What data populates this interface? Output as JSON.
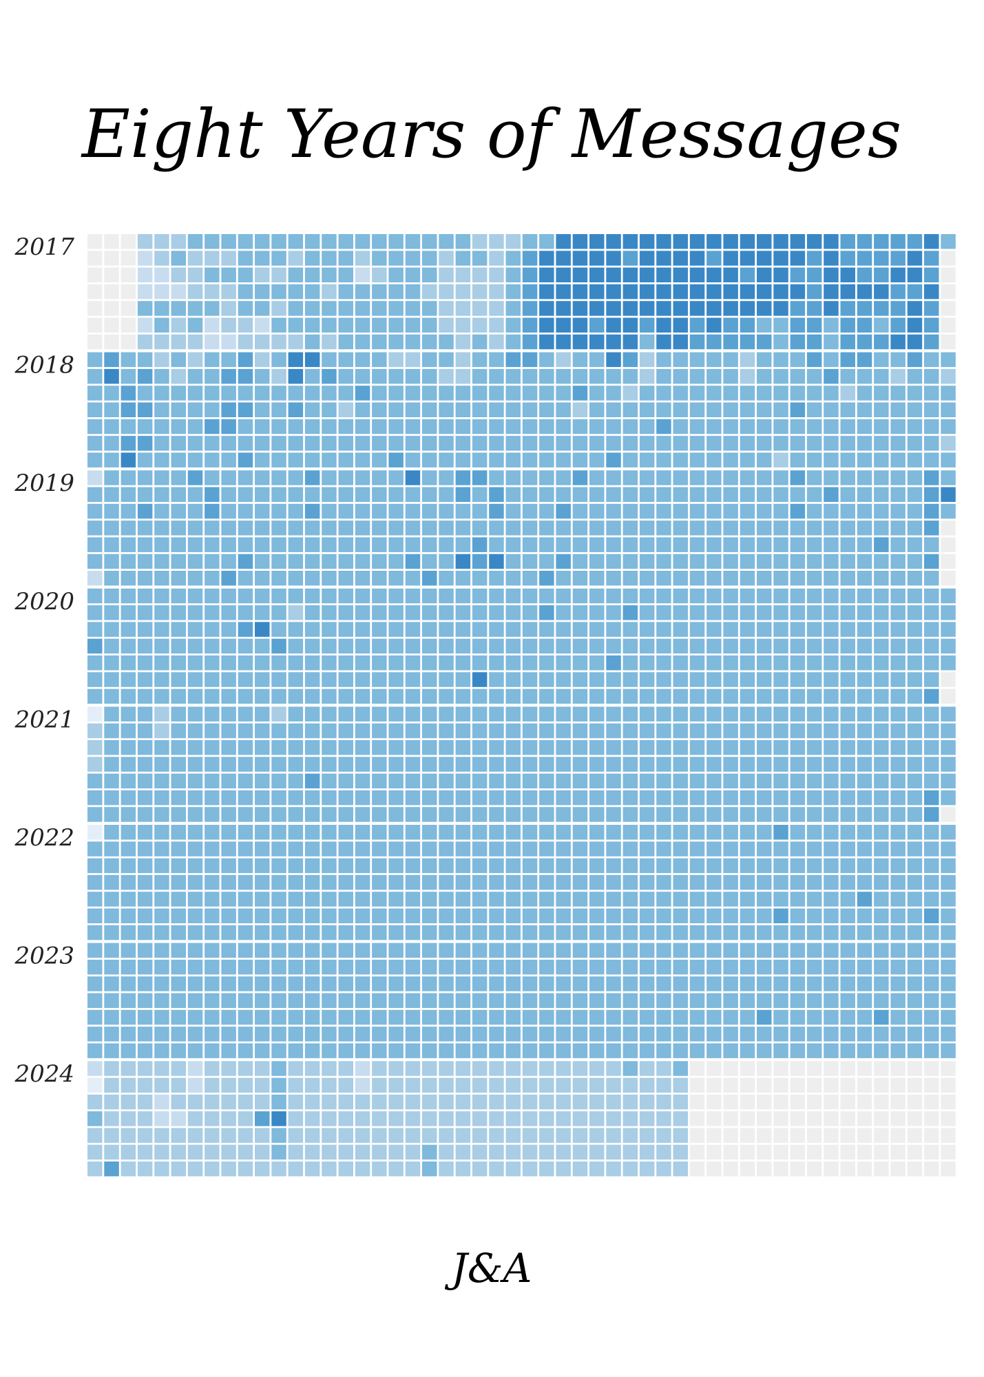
{
  "title": "Eight Years of Messages",
  "signature": "J&A",
  "chart_data": {
    "type": "heatmap",
    "title": "Eight Years of Messages",
    "description_scale": "0 = no data (grey), 1 = lightest blue ... 6 = darkest blue; 7 rows per year (days of week), 52 columns (weeks)",
    "palette": [
      "#eeeeee",
      "#e4eef9",
      "#c8dcef",
      "#a8cde5",
      "#7fb9dc",
      "#5aa2d2",
      "#3a87c6"
    ],
    "years": [
      {
        "label": "2017",
        "rows": [
          "0003334444444444444444433344666666666666666665555564",
          "0002343334443444344443443456666656666566666565555650",
          "0002233444334444234443333456666666666665665566556650",
          "0002223334444434444433333456666666666666666566665560",
          "0004444434434444444443333456666666666666665565555650",
          "0002434233244444444443333456665665665655445545545650",
          "0003333223333434444444343456666664665555545545556650"
        ]
      },
      {
        "label": "2018",
        "rows": [
          "4544343445346644443344344554344653444443444545544544",
          "4645434455436454444443344444444443444443444454443443",
          "4454444444444444544444444444454434444444444443444444",
          "4455444455445443444444444444434444444444445444444444",
          "4444444554444444444444444444444444544444444444444444",
          "4455444444444444444444444444444444444444444444444443",
          "4464444445444444445444444444444544444444434444444444"
        ]
      },
      {
        "label": "2019",
        "rows": [
          "2444445444444544444644554444454444444444445444444454",
          "4444444544444444444444545444444444444444444454444456",
          "4445444544444544444444445444544444444444445444444454",
          "4444444444444444444444444444444444444444444444444450",
          "4444444444444444444444454444444444444444444444454440",
          "4444444445444444444544656444544444444444444444444450",
          "2444444454444444444454444445444444444444444444444440"
        ]
      },
      {
        "label": "2020",
        "rows": [
          "4444444444444444444444444444444444444444444444444444",
          "4444444444443444444444444445444454444444444444444444",
          "4444444445644444444444444444444444444444444444444444",
          "5444444444454444444444444444444444444444444444444444",
          "4444444444444444444444444444444544444444444444444444",
          "4444444444444444444444464444444444444444444444444440",
          "4444444444444444444444444444444444444444444444444450"
        ]
      },
      {
        "label": "2021",
        "rows": [
          "1444344444434444444444444444444444444444444444444444",
          "3444344444444444444444444444444444444444444444444444",
          "3444444444444444444444444444444444444444444444444444",
          "3444444444444444444444444444444444444444444444444444",
          "4444444444444544444444444444444444444444444444444444",
          "4444444444444444444444444444444444444444444444444454",
          "4444444444444444444444444444444444444444444444444450"
        ]
      },
      {
        "label": "2022",
        "rows": [
          "1444444444444444444444444444444444444444454444444444",
          "4444444444444444444444444444444444444444444444444444",
          "4444444444444444444444444444444444444444444444444444",
          "4444444444444444444444444444444444444444444444444444",
          "4444444444444444444444444444444444444444444444544444",
          "4444444444444444444444444444444444444444454444444454",
          "4444444444444444444444444444444444444444444444444444"
        ]
      },
      {
        "label": "2023",
        "rows": [
          "4444444444444444444444444444444444444444444444444444",
          "4444444444444444444444444444444444444444444444444444",
          "4444444444444444444444444444444444444444444444444444",
          "4444444444444444444444444444444444444444444444444444",
          "4444444444444444444444444444444444444444544444454444",
          "4444444444444444444444444444444444444444444444444444",
          "4444444444444444444444444444444444444444444444444444"
        ]
      },
      {
        "label": "2024",
        "rows": [
          "2333332333343333233333333333333343340000000000000000",
          "1333332333343333233333333333333333330000000000000000",
          "3333233333343333333333333333333333330000000000000000",
          "4333223333563333333333333333333333330000000000000000",
          "3333333333343333333333333333333333330000000000000000",
          "3333333333343333333343333333333333330000000000000000",
          "3533333333333333333343333333333333330000000000000000"
        ]
      }
    ]
  }
}
